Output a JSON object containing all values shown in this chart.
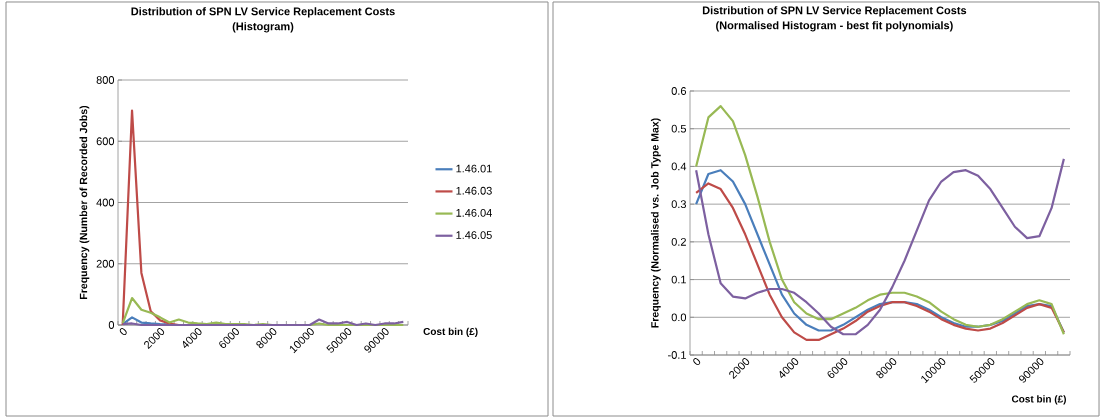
{
  "chart_data": [
    {
      "type": "line",
      "title": "Distribution of SPN LV Service Replacement Costs",
      "subtitle": "(Histogram)",
      "xlabel": "Cost bin  (£)",
      "ylabel": "Frequency (Number of Recorded Jobs)",
      "categories": [
        "0",
        null,
        null,
        null,
        "2000",
        null,
        null,
        null,
        "4000",
        null,
        null,
        null,
        "6000",
        null,
        null,
        null,
        "8000",
        null,
        null,
        null,
        "10000",
        null,
        null,
        null,
        "50000",
        null,
        null,
        null,
        "90000",
        null,
        null
      ],
      "series": [
        {
          "name": "1.46.01",
          "color": "#4a7ebb",
          "values": [
            3,
            25,
            8,
            5,
            3,
            2,
            null,
            null,
            null,
            null,
            null,
            null,
            null,
            null,
            null,
            null,
            null,
            null,
            null,
            null,
            null,
            null,
            0,
            0,
            null,
            null,
            null,
            null,
            0,
            0,
            null
          ]
        },
        {
          "name": "1.46.03",
          "color": "#be4b48",
          "values": [
            0,
            700,
            170,
            45,
            15,
            5,
            0,
            null,
            null,
            null,
            null,
            null,
            null,
            null,
            null,
            null,
            null,
            null,
            null,
            null,
            null,
            null,
            null,
            null,
            null,
            null,
            null,
            null,
            null,
            null,
            null
          ]
        },
        {
          "name": "1.46.04",
          "color": "#98b954",
          "values": [
            5,
            88,
            50,
            40,
            25,
            8,
            18,
            8,
            5,
            3,
            8,
            3,
            3,
            3,
            0,
            3,
            0,
            0,
            0,
            0,
            0,
            5,
            0,
            0,
            0,
            0,
            0,
            0,
            0,
            0,
            0
          ]
        },
        {
          "name": "1.46.05",
          "color": "#7d60a0",
          "values": [
            3,
            5,
            0,
            0,
            0,
            0,
            0,
            0,
            0,
            0,
            0,
            0,
            0,
            0,
            0,
            0,
            0,
            0,
            0,
            0,
            0,
            18,
            5,
            5,
            10,
            0,
            5,
            0,
            5,
            5,
            10
          ]
        }
      ],
      "ylim": [
        0,
        800
      ],
      "yticks": [
        0,
        200,
        400,
        600,
        800
      ],
      "grid": "y",
      "legend": "right"
    },
    {
      "type": "line",
      "title": "Distribution of SPN LV Service Replacement Costs",
      "subtitle": "(Normalised Histogram - best fit polynomials)",
      "xlabel": "Cost bin  (£)",
      "ylabel": "Frequency (Normalised vs. Job Type Max)",
      "categories": [
        "0",
        null,
        null,
        null,
        "2000",
        null,
        null,
        null,
        "4000",
        null,
        null,
        null,
        "6000",
        null,
        null,
        null,
        "8000",
        null,
        null,
        null,
        "10000",
        null,
        null,
        null,
        "50000",
        null,
        null,
        null,
        "90000",
        null,
        null
      ],
      "series": [
        {
          "color": "#4a7ebb",
          "values": [
            0.3,
            0.38,
            0.39,
            0.36,
            0.3,
            0.22,
            0.14,
            0.06,
            0.01,
            -0.02,
            -0.035,
            -0.035,
            -0.02,
            0.0,
            0.02,
            0.035,
            0.04,
            0.04,
            0.035,
            0.02,
            0.0,
            -0.015,
            -0.025,
            -0.025,
            -0.02,
            -0.01,
            0.01,
            0.03,
            0.035,
            0.03,
            -0.04
          ]
        },
        {
          "color": "#be4b48",
          "values": [
            0.33,
            0.355,
            0.34,
            0.29,
            0.22,
            0.14,
            0.06,
            0.0,
            -0.04,
            -0.06,
            -0.06,
            -0.045,
            -0.03,
            -0.01,
            0.015,
            0.03,
            0.04,
            0.04,
            0.03,
            0.015,
            -0.005,
            -0.02,
            -0.03,
            -0.035,
            -0.03,
            -0.015,
            0.005,
            0.025,
            0.035,
            0.025,
            -0.04
          ]
        },
        {
          "color": "#98b954",
          "values": [
            0.4,
            0.53,
            0.56,
            0.52,
            0.43,
            0.32,
            0.2,
            0.1,
            0.04,
            0.01,
            -0.005,
            -0.005,
            0.01,
            0.025,
            0.045,
            0.06,
            0.065,
            0.065,
            0.055,
            0.04,
            0.015,
            -0.005,
            -0.02,
            -0.025,
            -0.02,
            -0.005,
            0.015,
            0.035,
            0.045,
            0.035,
            -0.045
          ]
        },
        {
          "color": "#7d60a0",
          "values": [
            0.39,
            0.22,
            0.09,
            0.055,
            0.05,
            0.065,
            0.075,
            0.075,
            0.065,
            0.04,
            0.01,
            -0.025,
            -0.045,
            -0.045,
            -0.02,
            0.02,
            0.08,
            0.15,
            0.23,
            0.31,
            0.36,
            0.385,
            0.39,
            0.375,
            0.34,
            0.29,
            0.24,
            0.21,
            0.215,
            0.29,
            0.42
          ]
        }
      ],
      "ylim": [
        -0.1,
        0.6
      ],
      "yticks": [
        {
          "value": -0.1,
          "label": "-0.1"
        },
        {
          "value": 0,
          "label": "0.0"
        },
        {
          "value": 0.1,
          "label": "0.1"
        },
        {
          "value": 0.2,
          "label": "0.2"
        },
        {
          "value": 0.3,
          "label": "0.3"
        },
        {
          "value": 0.4,
          "label": "0.4"
        },
        {
          "value": 0.5,
          "label": "0.5"
        },
        {
          "value": 0.6,
          "label": "0.6"
        }
      ],
      "grid": "y"
    }
  ]
}
